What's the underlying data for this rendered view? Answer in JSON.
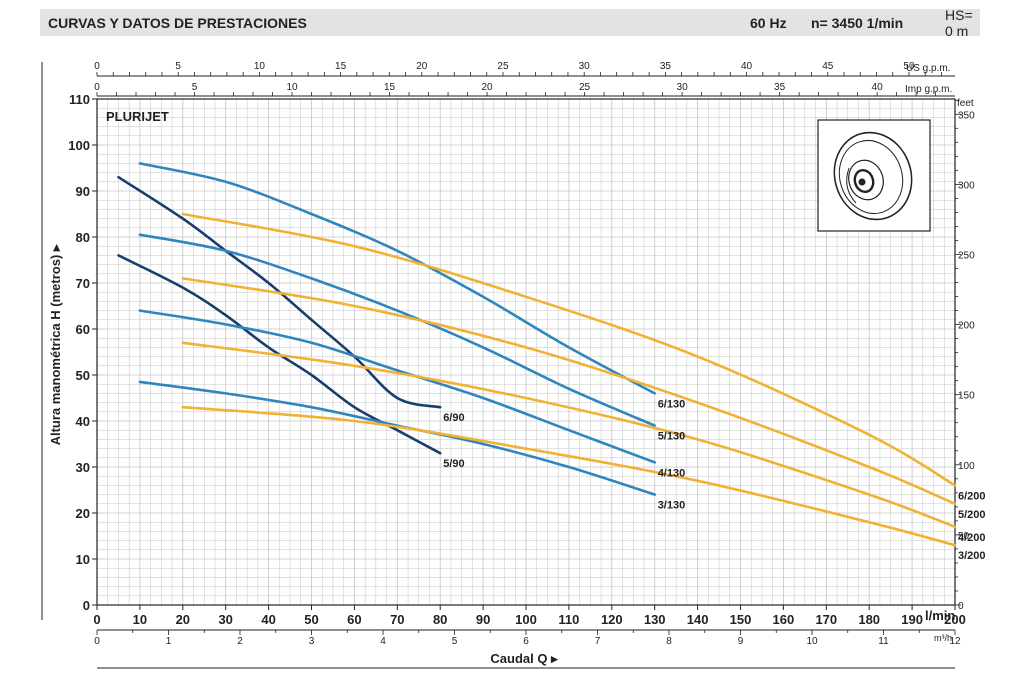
{
  "header": {
    "title": "CURVAS Y DATOS DE PRESTACIONES",
    "frequency": "60 Hz",
    "speed": "n= 3450  1/min",
    "suction_head": "HS= 0 m"
  },
  "chart_data": {
    "type": "line",
    "panel_label": "PLURIJET",
    "ylabel": "Altura manométrica H (metros)",
    "xlabel": "Caudal Q",
    "x_unit": "l/min",
    "xlim": [
      0,
      200
    ],
    "ylim": [
      0,
      110
    ],
    "grid": true,
    "x_ticks": [
      0,
      10,
      20,
      30,
      40,
      50,
      60,
      70,
      80,
      90,
      100,
      110,
      120,
      130,
      140,
      150,
      160,
      170,
      180,
      190,
      200
    ],
    "y_ticks": [
      0,
      10,
      20,
      30,
      40,
      50,
      60,
      70,
      80,
      90,
      100,
      110
    ],
    "secondary_axes": {
      "us_gpm": {
        "label": "US g.p.m.",
        "ticks": [
          0,
          5,
          10,
          15,
          20,
          25,
          30,
          35,
          40,
          45,
          50
        ]
      },
      "imp_gpm": {
        "label": "Imp g.p.m.",
        "ticks": [
          0,
          5,
          10,
          15,
          20,
          25,
          30,
          35,
          40
        ]
      },
      "m3h": {
        "label": "m³/h",
        "ticks": [
          0,
          1,
          2,
          3,
          4,
          5,
          6,
          7,
          8,
          9,
          10,
          11,
          12
        ]
      },
      "feet": {
        "label": "feet",
        "ticks": [
          0,
          50,
          100,
          150,
          200,
          250,
          300,
          350
        ]
      }
    },
    "colors": {
      "dark": "#163d6e",
      "blue": "#2f86bf",
      "orange": "#f1b233",
      "grid": "#c4c4c4",
      "axis": "#222222"
    },
    "series": [
      {
        "name": "6/90",
        "color": "dark",
        "points": [
          [
            5,
            93
          ],
          [
            20,
            84
          ],
          [
            30,
            77
          ],
          [
            40,
            70
          ],
          [
            50,
            62
          ],
          [
            60,
            54
          ],
          [
            70,
            45
          ],
          [
            80,
            43
          ]
        ]
      },
      {
        "name": "5/90",
        "color": "dark",
        "points": [
          [
            5,
            76
          ],
          [
            20,
            69
          ],
          [
            30,
            63
          ],
          [
            40,
            56
          ],
          [
            50,
            50
          ],
          [
            60,
            43
          ],
          [
            70,
            38
          ],
          [
            80,
            33
          ]
        ]
      },
      {
        "name": "6/130",
        "color": "blue",
        "points": [
          [
            10,
            96
          ],
          [
            30,
            92
          ],
          [
            50,
            85
          ],
          [
            70,
            77
          ],
          [
            90,
            67
          ],
          [
            110,
            56
          ],
          [
            130,
            46
          ]
        ]
      },
      {
        "name": "5/130",
        "color": "blue",
        "points": [
          [
            10,
            80.5
          ],
          [
            30,
            77
          ],
          [
            50,
            71
          ],
          [
            70,
            64
          ],
          [
            90,
            56
          ],
          [
            110,
            47
          ],
          [
            130,
            39
          ]
        ]
      },
      {
        "name": "4/130",
        "color": "blue",
        "points": [
          [
            10,
            64
          ],
          [
            30,
            61
          ],
          [
            50,
            57
          ],
          [
            70,
            51
          ],
          [
            90,
            45
          ],
          [
            110,
            38
          ],
          [
            130,
            31
          ]
        ]
      },
      {
        "name": "3/130",
        "color": "blue",
        "points": [
          [
            10,
            48.5
          ],
          [
            30,
            46
          ],
          [
            50,
            43
          ],
          [
            70,
            39
          ],
          [
            90,
            35
          ],
          [
            110,
            30
          ],
          [
            130,
            24
          ]
        ]
      },
      {
        "name": "6/200",
        "color": "orange",
        "points": [
          [
            20,
            85
          ],
          [
            60,
            78
          ],
          [
            100,
            67
          ],
          [
            140,
            54
          ],
          [
            180,
            37
          ],
          [
            200,
            26
          ]
        ]
      },
      {
        "name": "5/200",
        "color": "orange",
        "points": [
          [
            20,
            71
          ],
          [
            60,
            65
          ],
          [
            100,
            56
          ],
          [
            140,
            44
          ],
          [
            180,
            30
          ],
          [
            200,
            22
          ]
        ]
      },
      {
        "name": "4/200",
        "color": "orange",
        "points": [
          [
            20,
            57
          ],
          [
            60,
            52
          ],
          [
            100,
            45
          ],
          [
            140,
            36
          ],
          [
            180,
            24
          ],
          [
            200,
            17
          ]
        ]
      },
      {
        "name": "3/200",
        "color": "orange",
        "points": [
          [
            20,
            43
          ],
          [
            60,
            40
          ],
          [
            100,
            34
          ],
          [
            140,
            27
          ],
          [
            180,
            18
          ],
          [
            200,
            13
          ]
        ]
      }
    ]
  }
}
